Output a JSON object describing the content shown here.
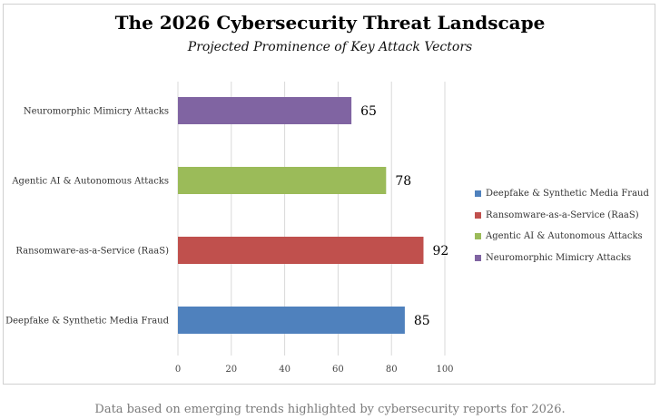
{
  "chart_data": {
    "type": "bar",
    "orientation": "horizontal",
    "title": "The 2026 Cybersecurity Threat Landscape",
    "subtitle": "Projected Prominence of Key Attack Vectors",
    "categories": [
      "Deepfake & Synthetic Media Fraud",
      "Ransomware-as-a-Service (RaaS)",
      "Agentic AI & Autonomous Attacks",
      "Neuromorphic Mimicry Attacks"
    ],
    "values": [
      85,
      92,
      78,
      65
    ],
    "colors": [
      "#4f81bd",
      "#c0504d",
      "#9bbb59",
      "#8064a2"
    ],
    "xlim": [
      0,
      100
    ],
    "xticks": [
      0,
      20,
      40,
      60,
      80,
      100
    ],
    "grid": true,
    "legend_position": "right",
    "xlabel": "",
    "ylabel": ""
  },
  "footer": "Data based on emerging trends highlighted by cybersecurity reports for 2026."
}
